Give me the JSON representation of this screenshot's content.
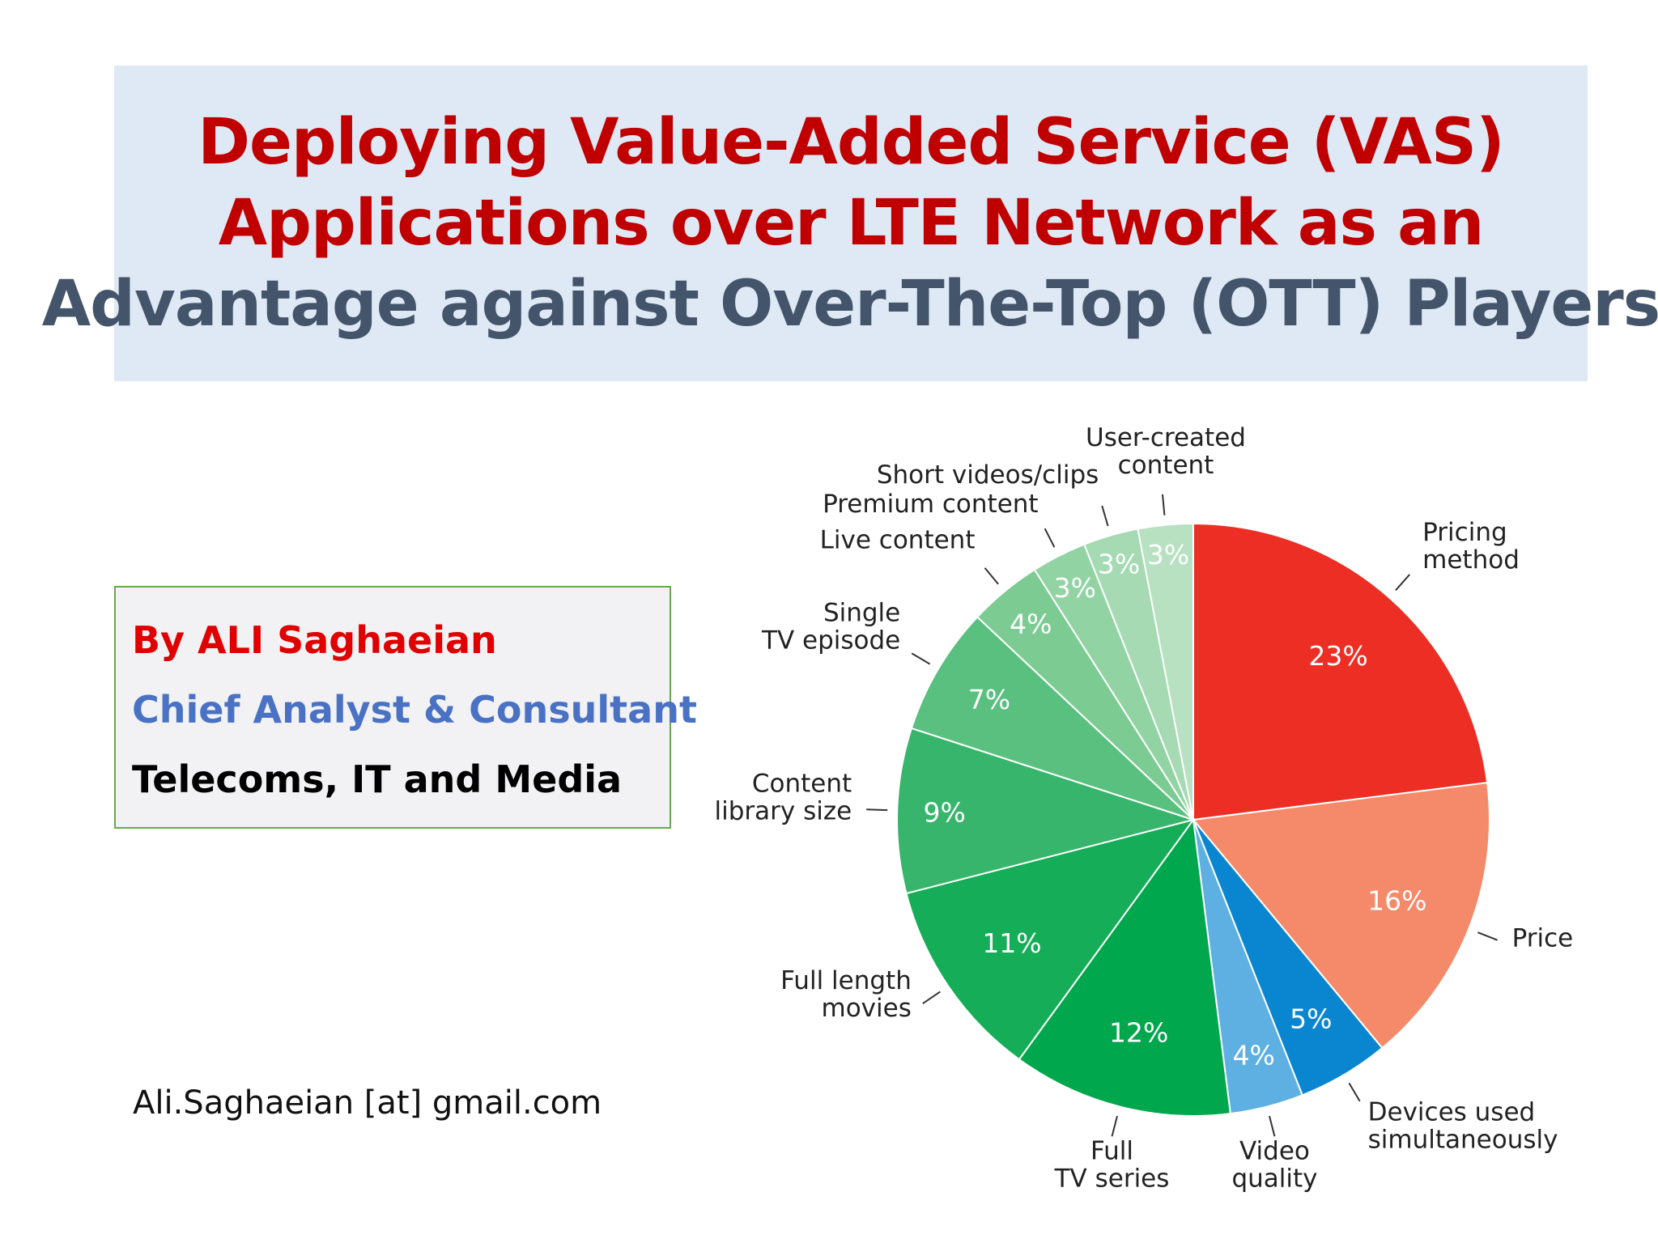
{
  "slide": {
    "title_lines": [
      "Deploying Value-Added Service (VAS)",
      "Applications over LTE Network as an",
      "Advantage against Over-The-Top (OTT) Players"
    ],
    "author": "By ALI Saghaeian",
    "role": "Chief Analyst & Consultant",
    "field": "Telecoms, IT and Media",
    "email": "Ali.Saghaeian [at] gmail.com",
    "colors": {
      "title_red": "#c00000",
      "title_grey": "#44546a",
      "title_bg": "#dfe9f5",
      "author_red": "#e00000",
      "author_blue": "#4a72c4",
      "box_border": "#6aa84f"
    }
  },
  "chart_data": {
    "type": "pie",
    "title": "",
    "start": "12 o'clock",
    "direction": "clockwise",
    "slices": [
      {
        "label": "Pricing method",
        "lines": [
          "Pricing",
          "method"
        ],
        "value": 23,
        "value_label": "23%",
        "color": "#ec2e25"
      },
      {
        "label": "Price",
        "lines": [
          "Price"
        ],
        "value": 16,
        "value_label": "16%",
        "color": "#f48a6a"
      },
      {
        "label": "Devices used simultaneously",
        "lines": [
          "Devices used",
          "simultaneously"
        ],
        "value": 5,
        "value_label": "5%",
        "color": "#0a86d1"
      },
      {
        "label": "Video quality",
        "lines": [
          "Video",
          "quality"
        ],
        "value": 4,
        "value_label": "4%",
        "color": "#5eb0e2"
      },
      {
        "label": "Full TV series",
        "lines": [
          "Full",
          "TV series"
        ],
        "value": 12,
        "value_label": "12%",
        "color": "#00a74c"
      },
      {
        "label": "Full length movies",
        "lines": [
          "Full length",
          "movies"
        ],
        "value": 11,
        "value_label": "11%",
        "color": "#16ad58"
      },
      {
        "label": "Content library size",
        "lines": [
          "Content",
          "library size"
        ],
        "value": 9,
        "value_label": "9%",
        "color": "#38b56c"
      },
      {
        "label": "Single TV episode",
        "lines": [
          "Single",
          "TV episode"
        ],
        "value": 7,
        "value_label": "7%",
        "color": "#5ac07f"
      },
      {
        "label": "Live content",
        "lines": [
          "Live content"
        ],
        "value": 4,
        "value_label": "4%",
        "color": "#7ccb93"
      },
      {
        "label": "Premium content",
        "lines": [
          "Premium content"
        ],
        "value": 3,
        "value_label": "3%",
        "color": "#92d3a4"
      },
      {
        "label": "Short videos/clips",
        "lines": [
          "Short videos/clips"
        ],
        "value": 3,
        "value_label": "3%",
        "color": "#a5dab2"
      },
      {
        "label": "User-created content",
        "lines": [
          "User-created",
          "content"
        ],
        "value": 3,
        "value_label": "3%",
        "color": "#b7e1c1"
      }
    ]
  }
}
